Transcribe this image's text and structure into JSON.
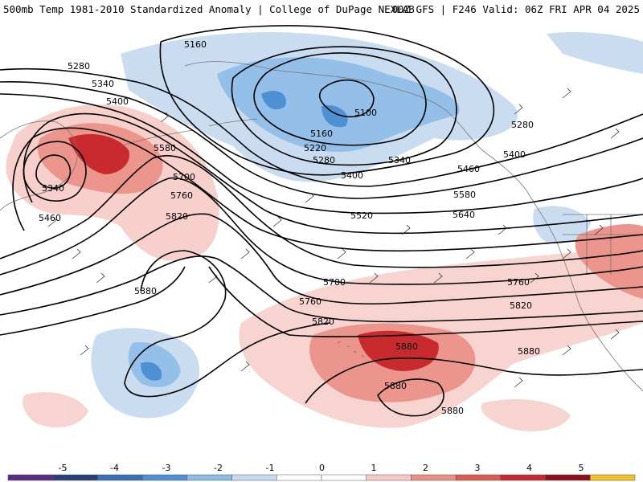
{
  "header": {
    "title_left": "500mb Temp 1981-2010 Standardized Anomaly | College of DuPage NEXLAB",
    "title_right": "00Z GFS | F246 Valid: 06Z FRI APR 04 2025"
  },
  "contour_labels": [
    {
      "text": "5160"
    },
    {
      "text": "5280"
    },
    {
      "text": "5340"
    },
    {
      "text": "5400"
    },
    {
      "text": "5100"
    },
    {
      "text": "5160"
    },
    {
      "text": "5220"
    },
    {
      "text": "5280"
    },
    {
      "text": "5340"
    },
    {
      "text": "5400"
    },
    {
      "text": "5460"
    },
    {
      "text": "5280"
    },
    {
      "text": "5400"
    },
    {
      "text": "5580"
    },
    {
      "text": "5700"
    },
    {
      "text": "5760"
    },
    {
      "text": "5820"
    },
    {
      "text": "5340"
    },
    {
      "text": "5460"
    },
    {
      "text": "5520"
    },
    {
      "text": "5580"
    },
    {
      "text": "5640"
    },
    {
      "text": "5880"
    },
    {
      "text": "5700"
    },
    {
      "text": "5760"
    },
    {
      "text": "5760"
    },
    {
      "text": "5820"
    },
    {
      "text": "5820"
    },
    {
      "text": "5880"
    },
    {
      "text": "5880"
    },
    {
      "text": "5880"
    },
    {
      "text": "5880"
    }
  ],
  "colorbar": {
    "labels": [
      "-5",
      "-4",
      "-3",
      "-2",
      "-1",
      "0",
      "1",
      "2",
      "3",
      "4",
      "5"
    ],
    "colors": [
      "#5b2a86",
      "#2a3f7a",
      "#3b6fb6",
      "#4f90d4",
      "#8fbce6",
      "#c6daf0",
      "#ffffff",
      "#ffffff",
      "#f7c9c4",
      "#eb8f86",
      "#d85a50",
      "#c22a2d",
      "#8e0f1a",
      "#f2c12e"
    ]
  }
}
